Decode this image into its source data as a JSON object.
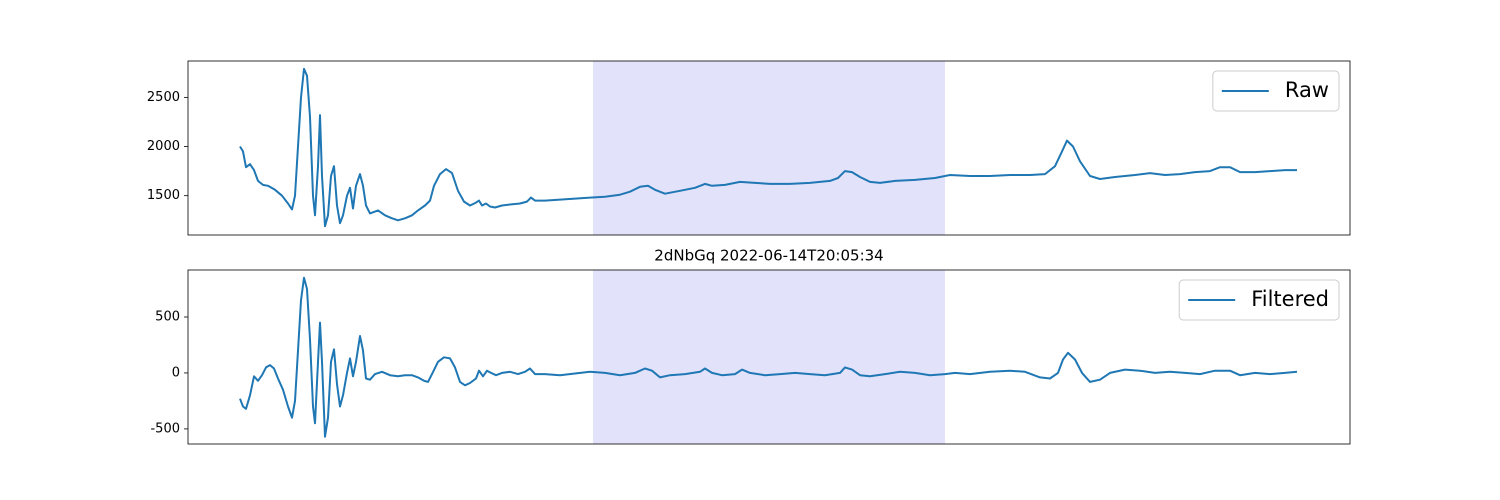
{
  "chart_data": [
    {
      "type": "line",
      "x": [
        0,
        3,
        6,
        10,
        14,
        18,
        23,
        28,
        35,
        42,
        48,
        52,
        55,
        58,
        61,
        64,
        67,
        70,
        73,
        75,
        78,
        80,
        82,
        85,
        88,
        91,
        94,
        97,
        100,
        103,
        107,
        110,
        113,
        116,
        120,
        123,
        126,
        130,
        138,
        145,
        152,
        158,
        165,
        172,
        178,
        185,
        190,
        194,
        200,
        206,
        212,
        218,
        224,
        230,
        236,
        239,
        242,
        246,
        250,
        255,
        262,
        270,
        280,
        287,
        291,
        295,
        305,
        320,
        335,
        350,
        365,
        380,
        390,
        400,
        408,
        415,
        425,
        440,
        455,
        465,
        472,
        485,
        500,
        515,
        530,
        550,
        570,
        590,
        598,
        605,
        612,
        620,
        630,
        640,
        655,
        675,
        695,
        710,
        730,
        750,
        770,
        790,
        805,
        815,
        822,
        827,
        833,
        840,
        850,
        860,
        875,
        895,
        910,
        925,
        940,
        955,
        970,
        980,
        990,
        1000,
        1015,
        1030,
        1045,
        1057
      ],
      "series": [
        {
          "name": "Raw",
          "color": "#1f77b4",
          "values": [
            2000,
            1950,
            1790,
            1820,
            1760,
            1650,
            1610,
            1600,
            1560,
            1500,
            1420,
            1360,
            1500,
            2000,
            2500,
            2790,
            2720,
            2300,
            1500,
            1300,
            1800,
            2320,
            1700,
            1190,
            1300,
            1700,
            1800,
            1400,
            1220,
            1300,
            1500,
            1580,
            1370,
            1600,
            1720,
            1600,
            1400,
            1320,
            1350,
            1300,
            1270,
            1250,
            1270,
            1300,
            1350,
            1400,
            1450,
            1600,
            1720,
            1770,
            1730,
            1550,
            1440,
            1400,
            1430,
            1450,
            1400,
            1420,
            1390,
            1380,
            1400,
            1410,
            1420,
            1440,
            1480,
            1450,
            1450,
            1460,
            1470,
            1480,
            1490,
            1510,
            1540,
            1590,
            1600,
            1560,
            1520,
            1550,
            1580,
            1620,
            1600,
            1610,
            1640,
            1630,
            1620,
            1620,
            1630,
            1650,
            1680,
            1750,
            1740,
            1690,
            1640,
            1630,
            1650,
            1660,
            1680,
            1710,
            1700,
            1700,
            1710,
            1710,
            1720,
            1800,
            1950,
            2060,
            2000,
            1850,
            1700,
            1670,
            1690,
            1710,
            1730,
            1710,
            1720,
            1740,
            1750,
            1790,
            1790,
            1740,
            1740,
            1750,
            1760,
            1760
          ]
        }
      ],
      "xlim": [
        -52,
        1110
      ],
      "ylim": [
        1100,
        2870
      ],
      "yticks": [
        1500,
        2000,
        2500
      ],
      "span": [
        353,
        705
      ],
      "span_color": "#e2e2fb",
      "legend": "upper right"
    },
    {
      "type": "line",
      "title": "2dNbGq 2022-06-14T20:05:34",
      "x": [
        0,
        3,
        6,
        10,
        14,
        18,
        22,
        26,
        30,
        34,
        38,
        43,
        48,
        52,
        55,
        58,
        61,
        64,
        67,
        70,
        73,
        75,
        78,
        80,
        82,
        85,
        88,
        91,
        94,
        97,
        100,
        103,
        107,
        110,
        113,
        116,
        120,
        123,
        126,
        130,
        135,
        142,
        150,
        158,
        165,
        172,
        178,
        184,
        188,
        192,
        198,
        204,
        210,
        215,
        220,
        225,
        230,
        236,
        239,
        243,
        247,
        251,
        256,
        262,
        270,
        278,
        285,
        290,
        295,
        305,
        320,
        335,
        350,
        365,
        380,
        395,
        405,
        412,
        420,
        430,
        445,
        460,
        465,
        472,
        482,
        495,
        502,
        510,
        525,
        540,
        555,
        570,
        585,
        600,
        605,
        612,
        620,
        630,
        645,
        660,
        675,
        690,
        705,
        715,
        730,
        750,
        770,
        785,
        800,
        810,
        818,
        823,
        828,
        835,
        842,
        850,
        860,
        870,
        885,
        900,
        915,
        930,
        945,
        960,
        975,
        990,
        1000,
        1015,
        1030,
        1045,
        1057
      ],
      "series": [
        {
          "name": "Filtered",
          "color": "#1f77b4",
          "values": [
            -230,
            -300,
            -320,
            -200,
            -30,
            -70,
            -20,
            50,
            70,
            40,
            -50,
            -150,
            -300,
            -400,
            -250,
            200,
            650,
            850,
            750,
            300,
            -300,
            -450,
            100,
            450,
            100,
            -570,
            -400,
            100,
            210,
            -100,
            -300,
            -200,
            0,
            130,
            -30,
            100,
            330,
            200,
            -50,
            -60,
            -10,
            10,
            -20,
            -30,
            -20,
            -20,
            -40,
            -70,
            -80,
            -10,
            100,
            140,
            130,
            50,
            -80,
            -110,
            -90,
            -50,
            20,
            -30,
            20,
            0,
            -20,
            0,
            10,
            -10,
            10,
            40,
            -10,
            -10,
            -20,
            -5,
            10,
            0,
            -20,
            0,
            40,
            20,
            -40,
            -20,
            -10,
            10,
            40,
            0,
            -20,
            -10,
            30,
            0,
            -20,
            -10,
            0,
            -10,
            -20,
            0,
            50,
            30,
            -20,
            -30,
            -10,
            10,
            0,
            -20,
            -10,
            0,
            -10,
            10,
            20,
            10,
            -40,
            -50,
            0,
            120,
            180,
            120,
            0,
            -80,
            -60,
            0,
            30,
            20,
            0,
            10,
            0,
            -10,
            20,
            20,
            -20,
            0,
            -10,
            0,
            10
          ]
        }
      ],
      "xlim": [
        -52,
        1110
      ],
      "ylim": [
        -635,
        920
      ],
      "yticks": [
        -500,
        0,
        500
      ],
      "span": [
        353,
        705
      ],
      "span_color": "#e2e2fb",
      "legend": "upper right"
    }
  ]
}
